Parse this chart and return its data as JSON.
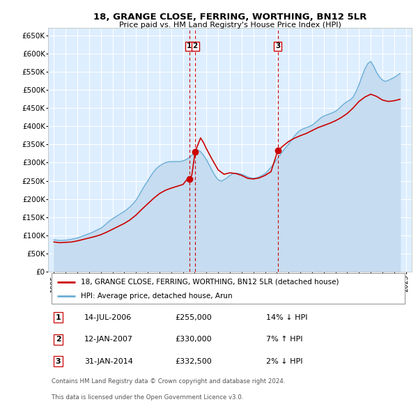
{
  "title": "18, GRANGE CLOSE, FERRING, WORTHING, BN12 5LR",
  "subtitle": "Price paid vs. HM Land Registry's House Price Index (HPI)",
  "ylabel_ticks": [
    "£0",
    "£50K",
    "£100K",
    "£150K",
    "£200K",
    "£250K",
    "£300K",
    "£350K",
    "£400K",
    "£450K",
    "£500K",
    "£550K",
    "£600K",
    "£650K"
  ],
  "ytick_values": [
    0,
    50000,
    100000,
    150000,
    200000,
    250000,
    300000,
    350000,
    400000,
    450000,
    500000,
    550000,
    600000,
    650000
  ],
  "xlim": [
    1994.5,
    2025.5
  ],
  "ylim": [
    0,
    670000
  ],
  "plot_bg_color": "#ddeeff",
  "grid_color": "#ffffff",
  "hpi_color": "#6baed6",
  "hpi_fill_color": "#c6dcf0",
  "price_color": "#cc0000",
  "vline_color": "#cc0000",
  "transactions": [
    {
      "label": "1",
      "year_decimal": 2006.54,
      "price": 255000
    },
    {
      "label": "2",
      "year_decimal": 2007.04,
      "price": 330000
    },
    {
      "label": "3",
      "year_decimal": 2014.08,
      "price": 332500
    }
  ],
  "legend_entry1": "18, GRANGE CLOSE, FERRING, WORTHING, BN12 5LR (detached house)",
  "legend_entry2": "HPI: Average price, detached house, Arun",
  "table_rows": [
    {
      "num": "1",
      "date": "14-JUL-2006",
      "price": "£255,000",
      "pct": "14%",
      "arrow": "↓",
      "hpi": "HPI"
    },
    {
      "num": "2",
      "date": "12-JAN-2007",
      "price": "£330,000",
      "pct": "7%",
      "arrow": "↑",
      "hpi": "HPI"
    },
    {
      "num": "3",
      "date": "31-JAN-2014",
      "price": "£332,500",
      "pct": "2%",
      "arrow": "↓",
      "hpi": "HPI"
    }
  ],
  "footer1": "Contains HM Land Registry data © Crown copyright and database right 2024.",
  "footer2": "This data is licensed under the Open Government Licence v3.0.",
  "hpi_data_x": [
    1995.0,
    1995.25,
    1995.5,
    1995.75,
    1996.0,
    1996.25,
    1996.5,
    1996.75,
    1997.0,
    1997.25,
    1997.5,
    1997.75,
    1998.0,
    1998.25,
    1998.5,
    1998.75,
    1999.0,
    1999.25,
    1999.5,
    1999.75,
    2000.0,
    2000.25,
    2000.5,
    2000.75,
    2001.0,
    2001.25,
    2001.5,
    2001.75,
    2002.0,
    2002.25,
    2002.5,
    2002.75,
    2003.0,
    2003.25,
    2003.5,
    2003.75,
    2004.0,
    2004.25,
    2004.5,
    2004.75,
    2005.0,
    2005.25,
    2005.5,
    2005.75,
    2006.0,
    2006.25,
    2006.5,
    2006.75,
    2007.0,
    2007.25,
    2007.5,
    2007.75,
    2008.0,
    2008.25,
    2008.5,
    2008.75,
    2009.0,
    2009.25,
    2009.5,
    2009.75,
    2010.0,
    2010.25,
    2010.5,
    2010.75,
    2011.0,
    2011.25,
    2011.5,
    2011.75,
    2012.0,
    2012.25,
    2012.5,
    2012.75,
    2013.0,
    2013.25,
    2013.5,
    2013.75,
    2014.0,
    2014.25,
    2014.5,
    2014.75,
    2015.0,
    2015.25,
    2015.5,
    2015.75,
    2016.0,
    2016.25,
    2016.5,
    2016.75,
    2017.0,
    2017.25,
    2017.5,
    2017.75,
    2018.0,
    2018.25,
    2018.5,
    2018.75,
    2019.0,
    2019.25,
    2019.5,
    2019.75,
    2020.0,
    2020.25,
    2020.5,
    2020.75,
    2021.0,
    2021.25,
    2021.5,
    2021.75,
    2022.0,
    2022.25,
    2022.5,
    2022.75,
    2023.0,
    2023.25,
    2023.5,
    2023.75,
    2024.0,
    2024.25,
    2024.5
  ],
  "hpi_data_y": [
    88000,
    87000,
    86000,
    86500,
    87000,
    88000,
    89500,
    91000,
    93000,
    96000,
    99000,
    102000,
    105000,
    108000,
    112000,
    116000,
    120000,
    126000,
    133000,
    140000,
    146000,
    151000,
    156000,
    161000,
    166000,
    172000,
    179000,
    187000,
    197000,
    210000,
    224000,
    238000,
    250000,
    263000,
    275000,
    284000,
    291000,
    296000,
    300000,
    302000,
    303000,
    303000,
    303000,
    303000,
    305000,
    308000,
    313000,
    320000,
    328000,
    335000,
    330000,
    320000,
    308000,
    293000,
    277000,
    263000,
    253000,
    249000,
    253000,
    258000,
    265000,
    270000,
    271000,
    270000,
    268000,
    265000,
    261000,
    258000,
    257000,
    258000,
    261000,
    265000,
    270000,
    278000,
    287000,
    298000,
    309000,
    320000,
    331000,
    341000,
    351000,
    362000,
    373000,
    382000,
    389000,
    393000,
    396000,
    399000,
    403000,
    409000,
    416000,
    423000,
    428000,
    431000,
    434000,
    437000,
    441000,
    447000,
    455000,
    462000,
    468000,
    472000,
    480000,
    495000,
    514000,
    536000,
    557000,
    572000,
    578000,
    565000,
    548000,
    535000,
    527000,
    523000,
    526000,
    530000,
    534000,
    539000,
    545000
  ],
  "price_data_x": [
    1995.0,
    1995.5,
    1996.0,
    1996.5,
    1997.0,
    1997.5,
    1998.0,
    1998.5,
    1999.0,
    1999.5,
    2000.0,
    2000.5,
    2001.0,
    2001.5,
    2002.0,
    2002.5,
    2003.0,
    2003.5,
    2004.0,
    2004.5,
    2005.0,
    2005.5,
    2006.0,
    2006.3,
    2006.54,
    2006.75,
    2007.04,
    2007.5,
    2007.75,
    2008.0,
    2008.5,
    2009.0,
    2009.5,
    2010.0,
    2010.5,
    2011.0,
    2011.5,
    2012.0,
    2012.5,
    2013.0,
    2013.5,
    2014.08,
    2014.5,
    2015.0,
    2015.5,
    2016.0,
    2016.5,
    2017.0,
    2017.5,
    2018.0,
    2018.5,
    2019.0,
    2019.5,
    2020.0,
    2020.5,
    2021.0,
    2021.5,
    2022.0,
    2022.5,
    2023.0,
    2023.5,
    2024.0,
    2024.5
  ],
  "price_data_y": [
    82000,
    80000,
    81000,
    82000,
    85000,
    89000,
    93000,
    97000,
    102000,
    109000,
    117000,
    125000,
    133000,
    143000,
    156000,
    172000,
    187000,
    202000,
    215000,
    224000,
    230000,
    235000,
    240000,
    252000,
    255000,
    265000,
    330000,
    368000,
    355000,
    338000,
    308000,
    280000,
    268000,
    272000,
    270000,
    265000,
    257000,
    255000,
    258000,
    265000,
    275000,
    332500,
    345000,
    358000,
    367000,
    374000,
    380000,
    388000,
    396000,
    402000,
    408000,
    415000,
    424000,
    435000,
    450000,
    468000,
    480000,
    488000,
    482000,
    472000,
    468000,
    470000,
    474000
  ]
}
